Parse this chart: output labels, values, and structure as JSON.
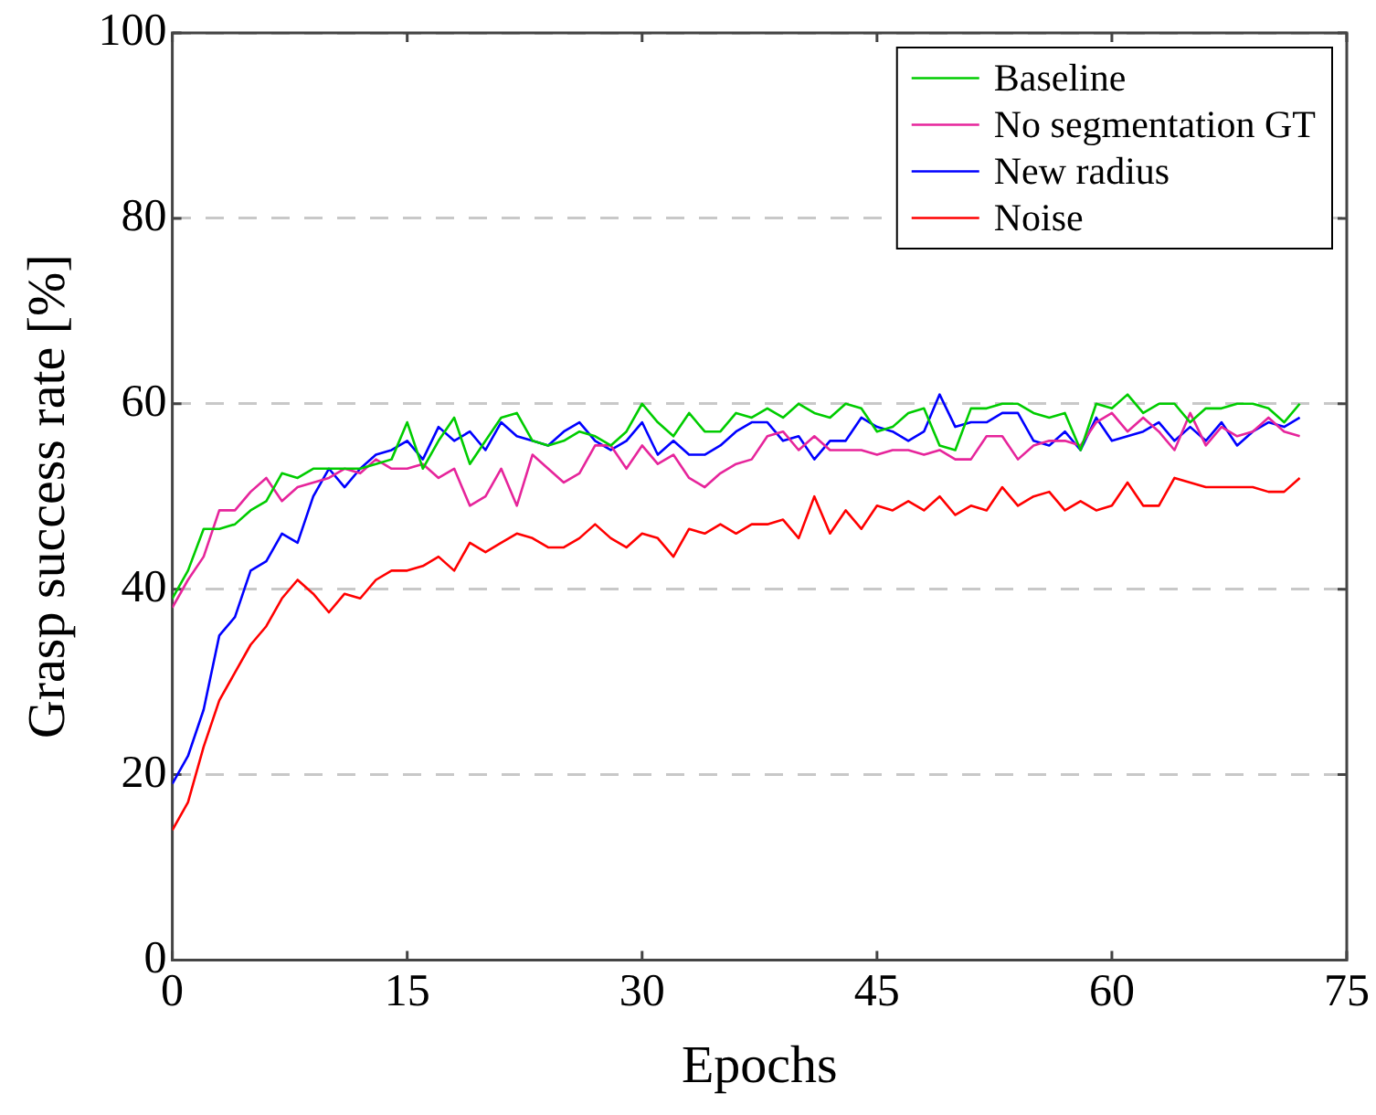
{
  "chart_data": {
    "type": "line",
    "xlabel": "Epochs",
    "ylabel": "Grasp success rate [%]",
    "x": [
      0,
      1,
      2,
      3,
      4,
      5,
      6,
      7,
      8,
      9,
      10,
      11,
      12,
      13,
      14,
      15,
      16,
      17,
      18,
      19,
      20,
      21,
      22,
      23,
      24,
      25,
      26,
      27,
      28,
      29,
      30,
      31,
      32,
      33,
      34,
      35,
      36,
      37,
      38,
      39,
      40,
      41,
      42,
      43,
      44,
      45,
      46,
      47,
      48,
      49,
      50,
      51,
      52,
      53,
      54,
      55,
      56,
      57,
      58,
      59,
      60,
      61,
      62,
      63,
      64,
      65,
      66,
      67,
      68,
      69,
      70,
      71,
      72
    ],
    "xlim": [
      0,
      75
    ],
    "xticks": [
      0,
      15,
      30,
      45,
      60,
      75
    ],
    "ylim": [
      0,
      100
    ],
    "yticks": [
      0,
      20,
      40,
      60,
      80,
      100
    ],
    "grid": "y",
    "legend": "top right",
    "marker": "none",
    "line_style": "solid",
    "series": [
      {
        "name": "Baseline",
        "color": "#00cc00",
        "values": [
          39,
          42,
          46.5,
          46.5,
          47,
          48.5,
          49.5,
          52.5,
          52,
          53,
          53,
          53,
          53,
          53.5,
          54,
          58,
          53,
          56,
          58.5,
          53.5,
          56,
          58.5,
          59,
          56,
          55.5,
          56,
          57,
          56.5,
          55.5,
          57,
          60,
          58,
          56.5,
          59,
          57,
          57,
          59,
          58.5,
          59.5,
          58.5,
          60,
          59,
          58.5,
          60,
          59.5,
          57,
          57.5,
          59,
          59.5,
          55.5,
          55,
          59.5,
          59.5,
          60,
          60,
          59,
          58.5,
          59,
          55,
          60,
          59.5,
          61,
          59,
          60,
          60,
          58,
          59.5,
          59.5,
          60,
          60,
          59.5,
          58,
          60
        ]
      },
      {
        "name": "No segmentation GT",
        "color": "#e6259b",
        "values": [
          38,
          41,
          43.5,
          48.5,
          48.5,
          50.5,
          52,
          49.5,
          51,
          51.5,
          52,
          53,
          52.5,
          54,
          53,
          53,
          53.5,
          52,
          53,
          49,
          50,
          53,
          49,
          54.5,
          53,
          51.5,
          52.5,
          55.5,
          55.5,
          53,
          55.5,
          53.5,
          54.5,
          52,
          51,
          52.5,
          53.5,
          54,
          56.5,
          57,
          55,
          56.5,
          55,
          55,
          55,
          54.5,
          55,
          55,
          54.5,
          55,
          54,
          54,
          56.5,
          56.5,
          54,
          55.5,
          56,
          56,
          55.5,
          58,
          59,
          57,
          58.5,
          57,
          55,
          59,
          55.5,
          57.5,
          56.5,
          57,
          58.5,
          57,
          56.5
        ]
      },
      {
        "name": "New radius",
        "color": "#0000ff",
        "values": [
          19,
          22,
          27,
          35,
          37,
          42,
          43,
          46,
          45,
          50,
          53,
          51,
          53,
          54.5,
          55,
          56,
          54,
          57.5,
          56,
          57,
          55,
          58,
          56.5,
          56,
          55.5,
          57,
          58,
          56,
          55,
          56,
          58,
          54.5,
          56,
          54.5,
          54.5,
          55.5,
          57,
          58,
          58,
          56,
          56.5,
          54,
          56,
          56,
          58.5,
          57.5,
          57,
          56,
          57,
          61,
          57.5,
          58,
          58,
          59,
          59,
          56,
          55.5,
          57,
          55,
          58.5,
          56,
          56.5,
          57,
          58,
          56,
          57.5,
          56,
          58,
          55.5,
          57,
          58,
          57.5,
          58.5
        ]
      },
      {
        "name": "Noise",
        "color": "#ff0000",
        "values": [
          14,
          17,
          23,
          28,
          31,
          34,
          36,
          39,
          41,
          39.5,
          37.5,
          39.5,
          39,
          41,
          42,
          42,
          42.5,
          43.5,
          42,
          45,
          44,
          45,
          46,
          45.5,
          44.5,
          44.5,
          45.5,
          47,
          45.5,
          44.5,
          46,
          45.5,
          43.5,
          46.5,
          46,
          47,
          46,
          47,
          47,
          47.5,
          45.5,
          50,
          46,
          48.5,
          46.5,
          49,
          48.5,
          49.5,
          48.5,
          50,
          48,
          49,
          48.5,
          51,
          49,
          50,
          50.5,
          48.5,
          49.5,
          48.5,
          49,
          51.5,
          49,
          49,
          52,
          51.5,
          51,
          51,
          51,
          51,
          50.5,
          50.5,
          52
        ]
      }
    ]
  }
}
